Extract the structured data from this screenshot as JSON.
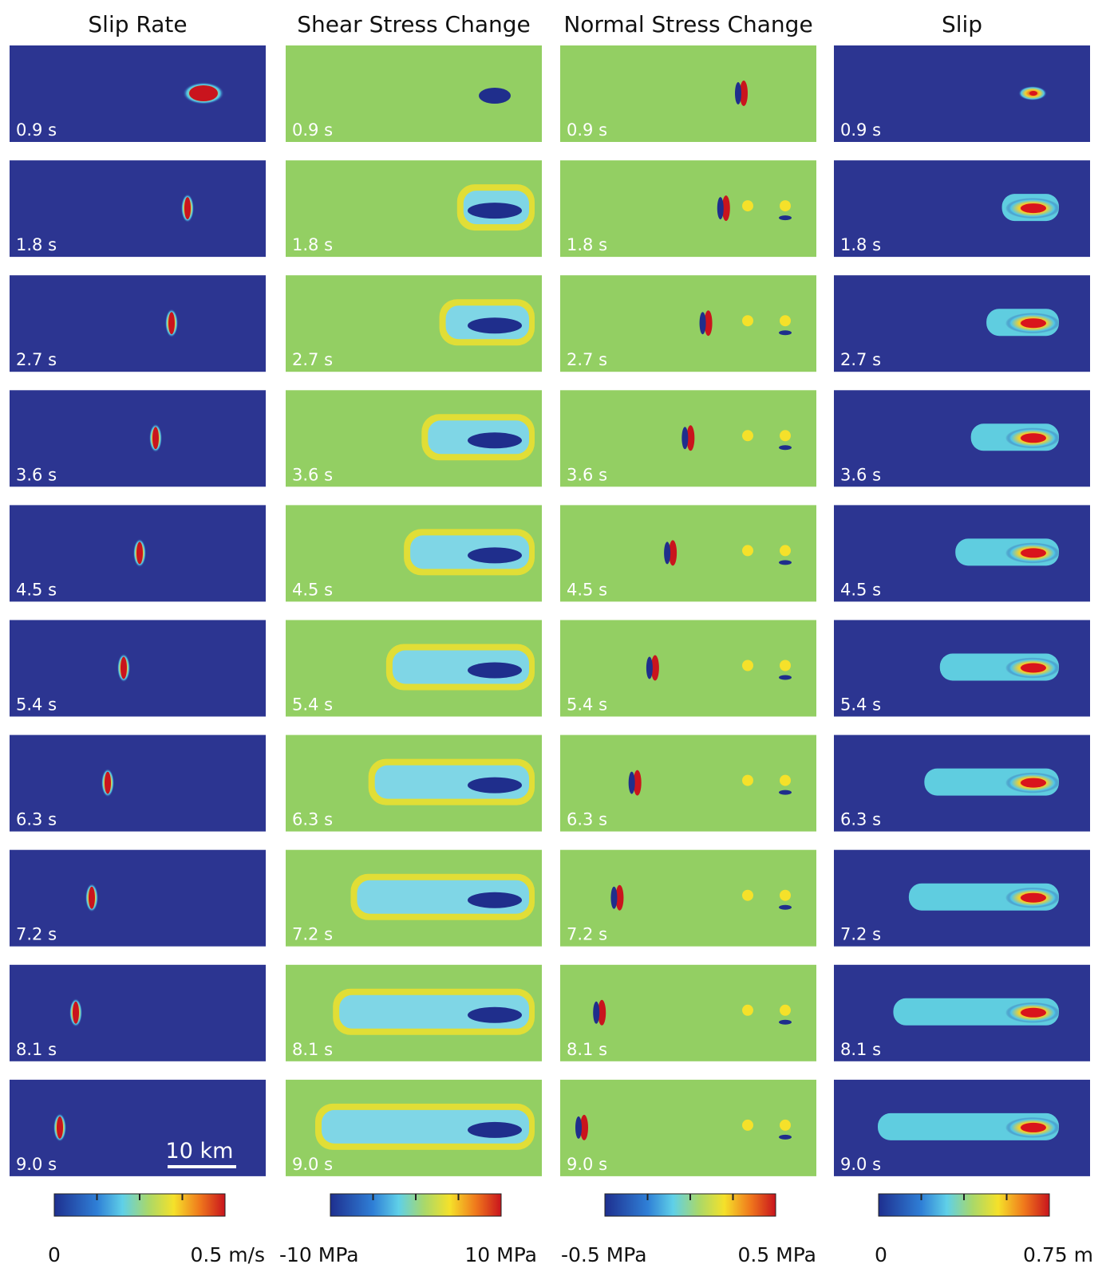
{
  "columns": [
    {
      "title": "Slip Rate",
      "colorbar": {
        "min_label": "0",
        "max_label": "0.5 m/s"
      }
    },
    {
      "title": "Shear Stress Change",
      "colorbar": {
        "min_label": "-10 MPa",
        "max_label": "10 MPa"
      }
    },
    {
      "title": "Normal Stress Change",
      "colorbar": {
        "min_label": "-0.5 MPa",
        "max_label": "0.5 MPa"
      }
    },
    {
      "title": "Slip",
      "colorbar": {
        "min_label": "0",
        "max_label": "0.75 m"
      }
    }
  ],
  "times": [
    "0.9 s",
    "1.8 s",
    "2.7 s",
    "3.6 s",
    "4.5 s",
    "5.4 s",
    "6.3 s",
    "7.2 s",
    "8.1 s",
    "9.0 s"
  ],
  "scale_bar": "10 km"
}
